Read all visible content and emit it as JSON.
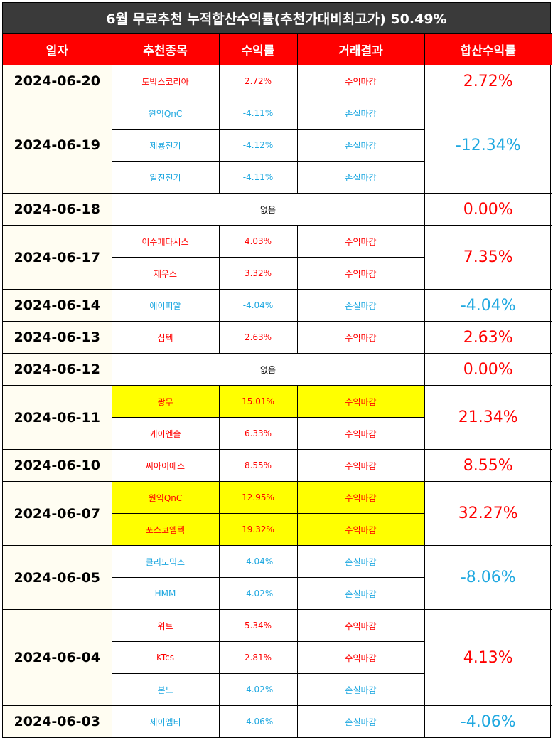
{
  "title": "6월 무료추천 누적합산수익률(추천가대비최고가) 50.49%",
  "headers": [
    "일자",
    "추천종목",
    "수익률",
    "거래결과",
    "합산수익률"
  ],
  "none_label": "없음",
  "colors": {
    "header_bg": "#ff0000",
    "title_bg": "#3a3a3a",
    "gain": "#ff0000",
    "loss": "#1fa8e0",
    "highlight": "#ffff00"
  },
  "groups": [
    {
      "date": "2024-06-20",
      "total": "2.72%",
      "trend": "up",
      "stocks": [
        {
          "name": "토박스코리아",
          "rate": "2.72%",
          "result": "수익마감",
          "trend": "up",
          "highlight": false
        }
      ]
    },
    {
      "date": "2024-06-19",
      "total": "-12.34%",
      "trend": "down",
      "stocks": [
        {
          "name": "윈익QnC",
          "rate": "-4.11%",
          "result": "손실마감",
          "trend": "down",
          "highlight": false
        },
        {
          "name": "제룡전기",
          "rate": "-4.12%",
          "result": "손실마감",
          "trend": "down",
          "highlight": false
        },
        {
          "name": "일진전기",
          "rate": "-4.11%",
          "result": "손실마감",
          "trend": "down",
          "highlight": false
        }
      ]
    },
    {
      "date": "2024-06-18",
      "total": "0.00%",
      "trend": "up",
      "stocks": []
    },
    {
      "date": "2024-06-17",
      "total": "7.35%",
      "trend": "up",
      "stocks": [
        {
          "name": "이수페타시스",
          "rate": "4.03%",
          "result": "수익마감",
          "trend": "up",
          "highlight": false
        },
        {
          "name": "제우스",
          "rate": "3.32%",
          "result": "수익마감",
          "trend": "up",
          "highlight": false
        }
      ]
    },
    {
      "date": "2024-06-14",
      "total": "-4.04%",
      "trend": "down",
      "stocks": [
        {
          "name": "에이피알",
          "rate": "-4.04%",
          "result": "손실마감",
          "trend": "down",
          "highlight": false
        }
      ]
    },
    {
      "date": "2024-06-13",
      "total": "2.63%",
      "trend": "up",
      "stocks": [
        {
          "name": "심텍",
          "rate": "2.63%",
          "result": "수익마감",
          "trend": "up",
          "highlight": false
        }
      ]
    },
    {
      "date": "2024-06-12",
      "total": "0.00%",
      "trend": "up",
      "stocks": []
    },
    {
      "date": "2024-06-11",
      "total": "21.34%",
      "trend": "up",
      "stocks": [
        {
          "name": "광무",
          "rate": "15.01%",
          "result": "수익마감",
          "trend": "up",
          "highlight": true
        },
        {
          "name": "케이엔솔",
          "rate": "6.33%",
          "result": "수익마감",
          "trend": "up",
          "highlight": false
        }
      ]
    },
    {
      "date": "2024-06-10",
      "total": "8.55%",
      "trend": "up",
      "stocks": [
        {
          "name": "씨아이에스",
          "rate": "8.55%",
          "result": "수익마감",
          "trend": "up",
          "highlight": false
        }
      ]
    },
    {
      "date": "2024-06-07",
      "total": "32.27%",
      "trend": "up",
      "stocks": [
        {
          "name": "원익QnC",
          "rate": "12.95%",
          "result": "수익마감",
          "trend": "up",
          "highlight": true
        },
        {
          "name": "포스코엠텍",
          "rate": "19.32%",
          "result": "수익마감",
          "trend": "up",
          "highlight": true
        }
      ]
    },
    {
      "date": "2024-06-05",
      "total": "-8.06%",
      "trend": "down",
      "stocks": [
        {
          "name": "클리노믹스",
          "rate": "-4.04%",
          "result": "손실마감",
          "trend": "down",
          "highlight": false
        },
        {
          "name": "HMM",
          "rate": "-4.02%",
          "result": "손실마감",
          "trend": "down",
          "highlight": false
        }
      ]
    },
    {
      "date": "2024-06-04",
      "total": "4.13%",
      "trend": "up",
      "stocks": [
        {
          "name": "위트",
          "rate": "5.34%",
          "result": "수익마감",
          "trend": "up",
          "highlight": false
        },
        {
          "name": "KTcs",
          "rate": "2.81%",
          "result": "수익마감",
          "trend": "up",
          "highlight": false
        },
        {
          "name": "본느",
          "rate": "-4.02%",
          "result": "손실마감",
          "trend": "down",
          "highlight": false
        }
      ]
    },
    {
      "date": "2024-06-03",
      "total": "-4.06%",
      "trend": "down",
      "stocks": [
        {
          "name": "제이엠티",
          "rate": "-4.06%",
          "result": "손실마감",
          "trend": "down",
          "highlight": false
        }
      ]
    }
  ]
}
